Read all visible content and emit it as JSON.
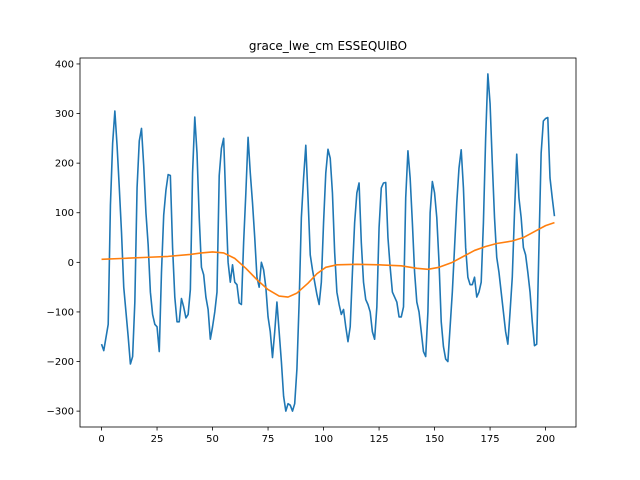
{
  "chart_data": {
    "type": "line",
    "title": "grace_lwe_cm ESSEQUIBO",
    "xlabel": "",
    "ylabel": "",
    "xlim": [
      -9.7,
      213.7
    ],
    "ylim": [
      -332,
      412
    ],
    "xticks": [
      0,
      25,
      50,
      75,
      100,
      125,
      150,
      175,
      200
    ],
    "yticks": [
      -300,
      -200,
      -100,
      0,
      100,
      200,
      300,
      400
    ],
    "grid": false,
    "series": [
      {
        "color": "#1f77b4",
        "points": [
          [
            0,
            -165
          ],
          [
            1,
            -178
          ],
          [
            3,
            -125
          ],
          [
            4,
            115
          ],
          [
            5,
            240
          ],
          [
            6,
            305
          ],
          [
            7,
            235
          ],
          [
            8,
            150
          ],
          [
            9,
            60
          ],
          [
            10,
            -50
          ],
          [
            11,
            -100
          ],
          [
            12,
            -150
          ],
          [
            13,
            -205
          ],
          [
            14,
            -190
          ],
          [
            15,
            -80
          ],
          [
            16,
            150
          ],
          [
            17,
            245
          ],
          [
            18,
            270
          ],
          [
            19,
            195
          ],
          [
            20,
            100
          ],
          [
            21,
            35
          ],
          [
            22,
            -60
          ],
          [
            23,
            -105
          ],
          [
            24,
            -125
          ],
          [
            25,
            -130
          ],
          [
            26,
            -180
          ],
          [
            27,
            -20
          ],
          [
            28,
            95
          ],
          [
            29,
            145
          ],
          [
            30,
            177
          ],
          [
            31,
            175
          ],
          [
            32,
            30
          ],
          [
            33,
            -70
          ],
          [
            34,
            -120
          ],
          [
            35,
            -120
          ],
          [
            36,
            -73
          ],
          [
            37,
            -90
          ],
          [
            38,
            -112
          ],
          [
            39,
            -105
          ],
          [
            40,
            -55
          ],
          [
            41,
            180
          ],
          [
            42,
            293
          ],
          [
            43,
            220
          ],
          [
            44,
            90
          ],
          [
            45,
            -10
          ],
          [
            46,
            -25
          ],
          [
            47,
            -70
          ],
          [
            48,
            -95
          ],
          [
            49,
            -155
          ],
          [
            50,
            -130
          ],
          [
            51,
            -100
          ],
          [
            52,
            -60
          ],
          [
            53,
            175
          ],
          [
            54,
            230
          ],
          [
            55,
            250
          ],
          [
            56,
            120
          ],
          [
            57,
            0
          ],
          [
            58,
            -40
          ],
          [
            59,
            -5
          ],
          [
            60,
            -40
          ],
          [
            61,
            -45
          ],
          [
            62,
            -82
          ],
          [
            63,
            -85
          ],
          [
            64,
            40
          ],
          [
            65,
            140
          ],
          [
            66,
            252
          ],
          [
            67,
            180
          ],
          [
            68,
            120
          ],
          [
            69,
            50
          ],
          [
            70,
            -30
          ],
          [
            71,
            -50
          ],
          [
            72,
            0
          ],
          [
            73,
            -15
          ],
          [
            74,
            -50
          ],
          [
            75,
            -110
          ],
          [
            76,
            -140
          ],
          [
            77,
            -192
          ],
          [
            78,
            -140
          ],
          [
            79,
            -80
          ],
          [
            80,
            -140
          ],
          [
            81,
            -200
          ],
          [
            82,
            -270
          ],
          [
            83,
            -300
          ],
          [
            84,
            -285
          ],
          [
            85,
            -288
          ],
          [
            86,
            -300
          ],
          [
            87,
            -285
          ],
          [
            88,
            -215
          ],
          [
            89,
            -80
          ],
          [
            90,
            90
          ],
          [
            91,
            170
          ],
          [
            92,
            236
          ],
          [
            93,
            130
          ],
          [
            94,
            15
          ],
          [
            95,
            -15
          ],
          [
            96,
            -40
          ],
          [
            97,
            -65
          ],
          [
            98,
            -85
          ],
          [
            99,
            -40
          ],
          [
            100,
            80
          ],
          [
            101,
            180
          ],
          [
            102,
            228
          ],
          [
            103,
            210
          ],
          [
            104,
            140
          ],
          [
            105,
            20
          ],
          [
            106,
            -60
          ],
          [
            107,
            -85
          ],
          [
            108,
            -105
          ],
          [
            109,
            -95
          ],
          [
            110,
            -130
          ],
          [
            111,
            -160
          ],
          [
            112,
            -130
          ],
          [
            113,
            -20
          ],
          [
            114,
            80
          ],
          [
            115,
            140
          ],
          [
            116,
            160
          ],
          [
            117,
            40
          ],
          [
            118,
            -40
          ],
          [
            119,
            -75
          ],
          [
            120,
            -85
          ],
          [
            121,
            -100
          ],
          [
            122,
            -140
          ],
          [
            123,
            -155
          ],
          [
            124,
            -90
          ],
          [
            125,
            70
          ],
          [
            126,
            150
          ],
          [
            127,
            160
          ],
          [
            128,
            161
          ],
          [
            129,
            50
          ],
          [
            130,
            -10
          ],
          [
            131,
            -60
          ],
          [
            132,
            -70
          ],
          [
            133,
            -80
          ],
          [
            134,
            -110
          ],
          [
            135,
            -110
          ],
          [
            136,
            -90
          ],
          [
            137,
            130
          ],
          [
            138,
            225
          ],
          [
            139,
            170
          ],
          [
            140,
            80
          ],
          [
            141,
            -20
          ],
          [
            142,
            -80
          ],
          [
            143,
            -100
          ],
          [
            144,
            -140
          ],
          [
            145,
            -180
          ],
          [
            146,
            -190
          ],
          [
            147,
            -100
          ],
          [
            148,
            100
          ],
          [
            149,
            163
          ],
          [
            150,
            140
          ],
          [
            151,
            90
          ],
          [
            152,
            0
          ],
          [
            153,
            -120
          ],
          [
            154,
            -170
          ],
          [
            155,
            -195
          ],
          [
            156,
            -200
          ],
          [
            157,
            -130
          ],
          [
            158,
            -60
          ],
          [
            159,
            30
          ],
          [
            160,
            120
          ],
          [
            161,
            190
          ],
          [
            162,
            227
          ],
          [
            163,
            150
          ],
          [
            164,
            30
          ],
          [
            165,
            -30
          ],
          [
            166,
            -45
          ],
          [
            167,
            -45
          ],
          [
            168,
            -30
          ],
          [
            169,
            -70
          ],
          [
            170,
            -60
          ],
          [
            171,
            -40
          ],
          [
            172,
            80
          ],
          [
            173,
            250
          ],
          [
            174,
            380
          ],
          [
            175,
            320
          ],
          [
            176,
            200
          ],
          [
            177,
            90
          ],
          [
            178,
            10
          ],
          [
            179,
            -20
          ],
          [
            180,
            -60
          ],
          [
            181,
            -100
          ],
          [
            182,
            -140
          ],
          [
            183,
            -165
          ],
          [
            184,
            -100
          ],
          [
            185,
            -30
          ],
          [
            186,
            100
          ],
          [
            187,
            218
          ],
          [
            188,
            130
          ],
          [
            189,
            90
          ],
          [
            190,
            30
          ],
          [
            191,
            15
          ],
          [
            192,
            -20
          ],
          [
            193,
            -60
          ],
          [
            194,
            -120
          ],
          [
            195,
            -168
          ],
          [
            196,
            -165
          ],
          [
            197,
            30
          ],
          [
            198,
            220
          ],
          [
            199,
            285
          ],
          [
            200,
            290
          ],
          [
            201,
            292
          ],
          [
            202,
            170
          ],
          [
            203,
            130
          ],
          [
            204,
            93
          ]
        ]
      },
      {
        "color": "#ff7f0e",
        "points": [
          [
            0,
            6
          ],
          [
            10,
            8
          ],
          [
            20,
            10
          ],
          [
            30,
            12
          ],
          [
            40,
            16
          ],
          [
            45,
            19
          ],
          [
            50,
            21
          ],
          [
            55,
            19
          ],
          [
            60,
            8
          ],
          [
            65,
            -12
          ],
          [
            70,
            -35
          ],
          [
            75,
            -55
          ],
          [
            80,
            -68
          ],
          [
            84,
            -70
          ],
          [
            88,
            -62
          ],
          [
            93,
            -42
          ],
          [
            97,
            -23
          ],
          [
            101,
            -10
          ],
          [
            106,
            -5
          ],
          [
            115,
            -4
          ],
          [
            125,
            -5
          ],
          [
            135,
            -7
          ],
          [
            142,
            -12
          ],
          [
            147,
            -14
          ],
          [
            152,
            -10
          ],
          [
            158,
            0
          ],
          [
            163,
            12
          ],
          [
            168,
            24
          ],
          [
            173,
            32
          ],
          [
            178,
            38
          ],
          [
            185,
            43
          ],
          [
            190,
            50
          ],
          [
            195,
            62
          ],
          [
            200,
            74
          ],
          [
            204,
            80
          ]
        ]
      }
    ]
  }
}
